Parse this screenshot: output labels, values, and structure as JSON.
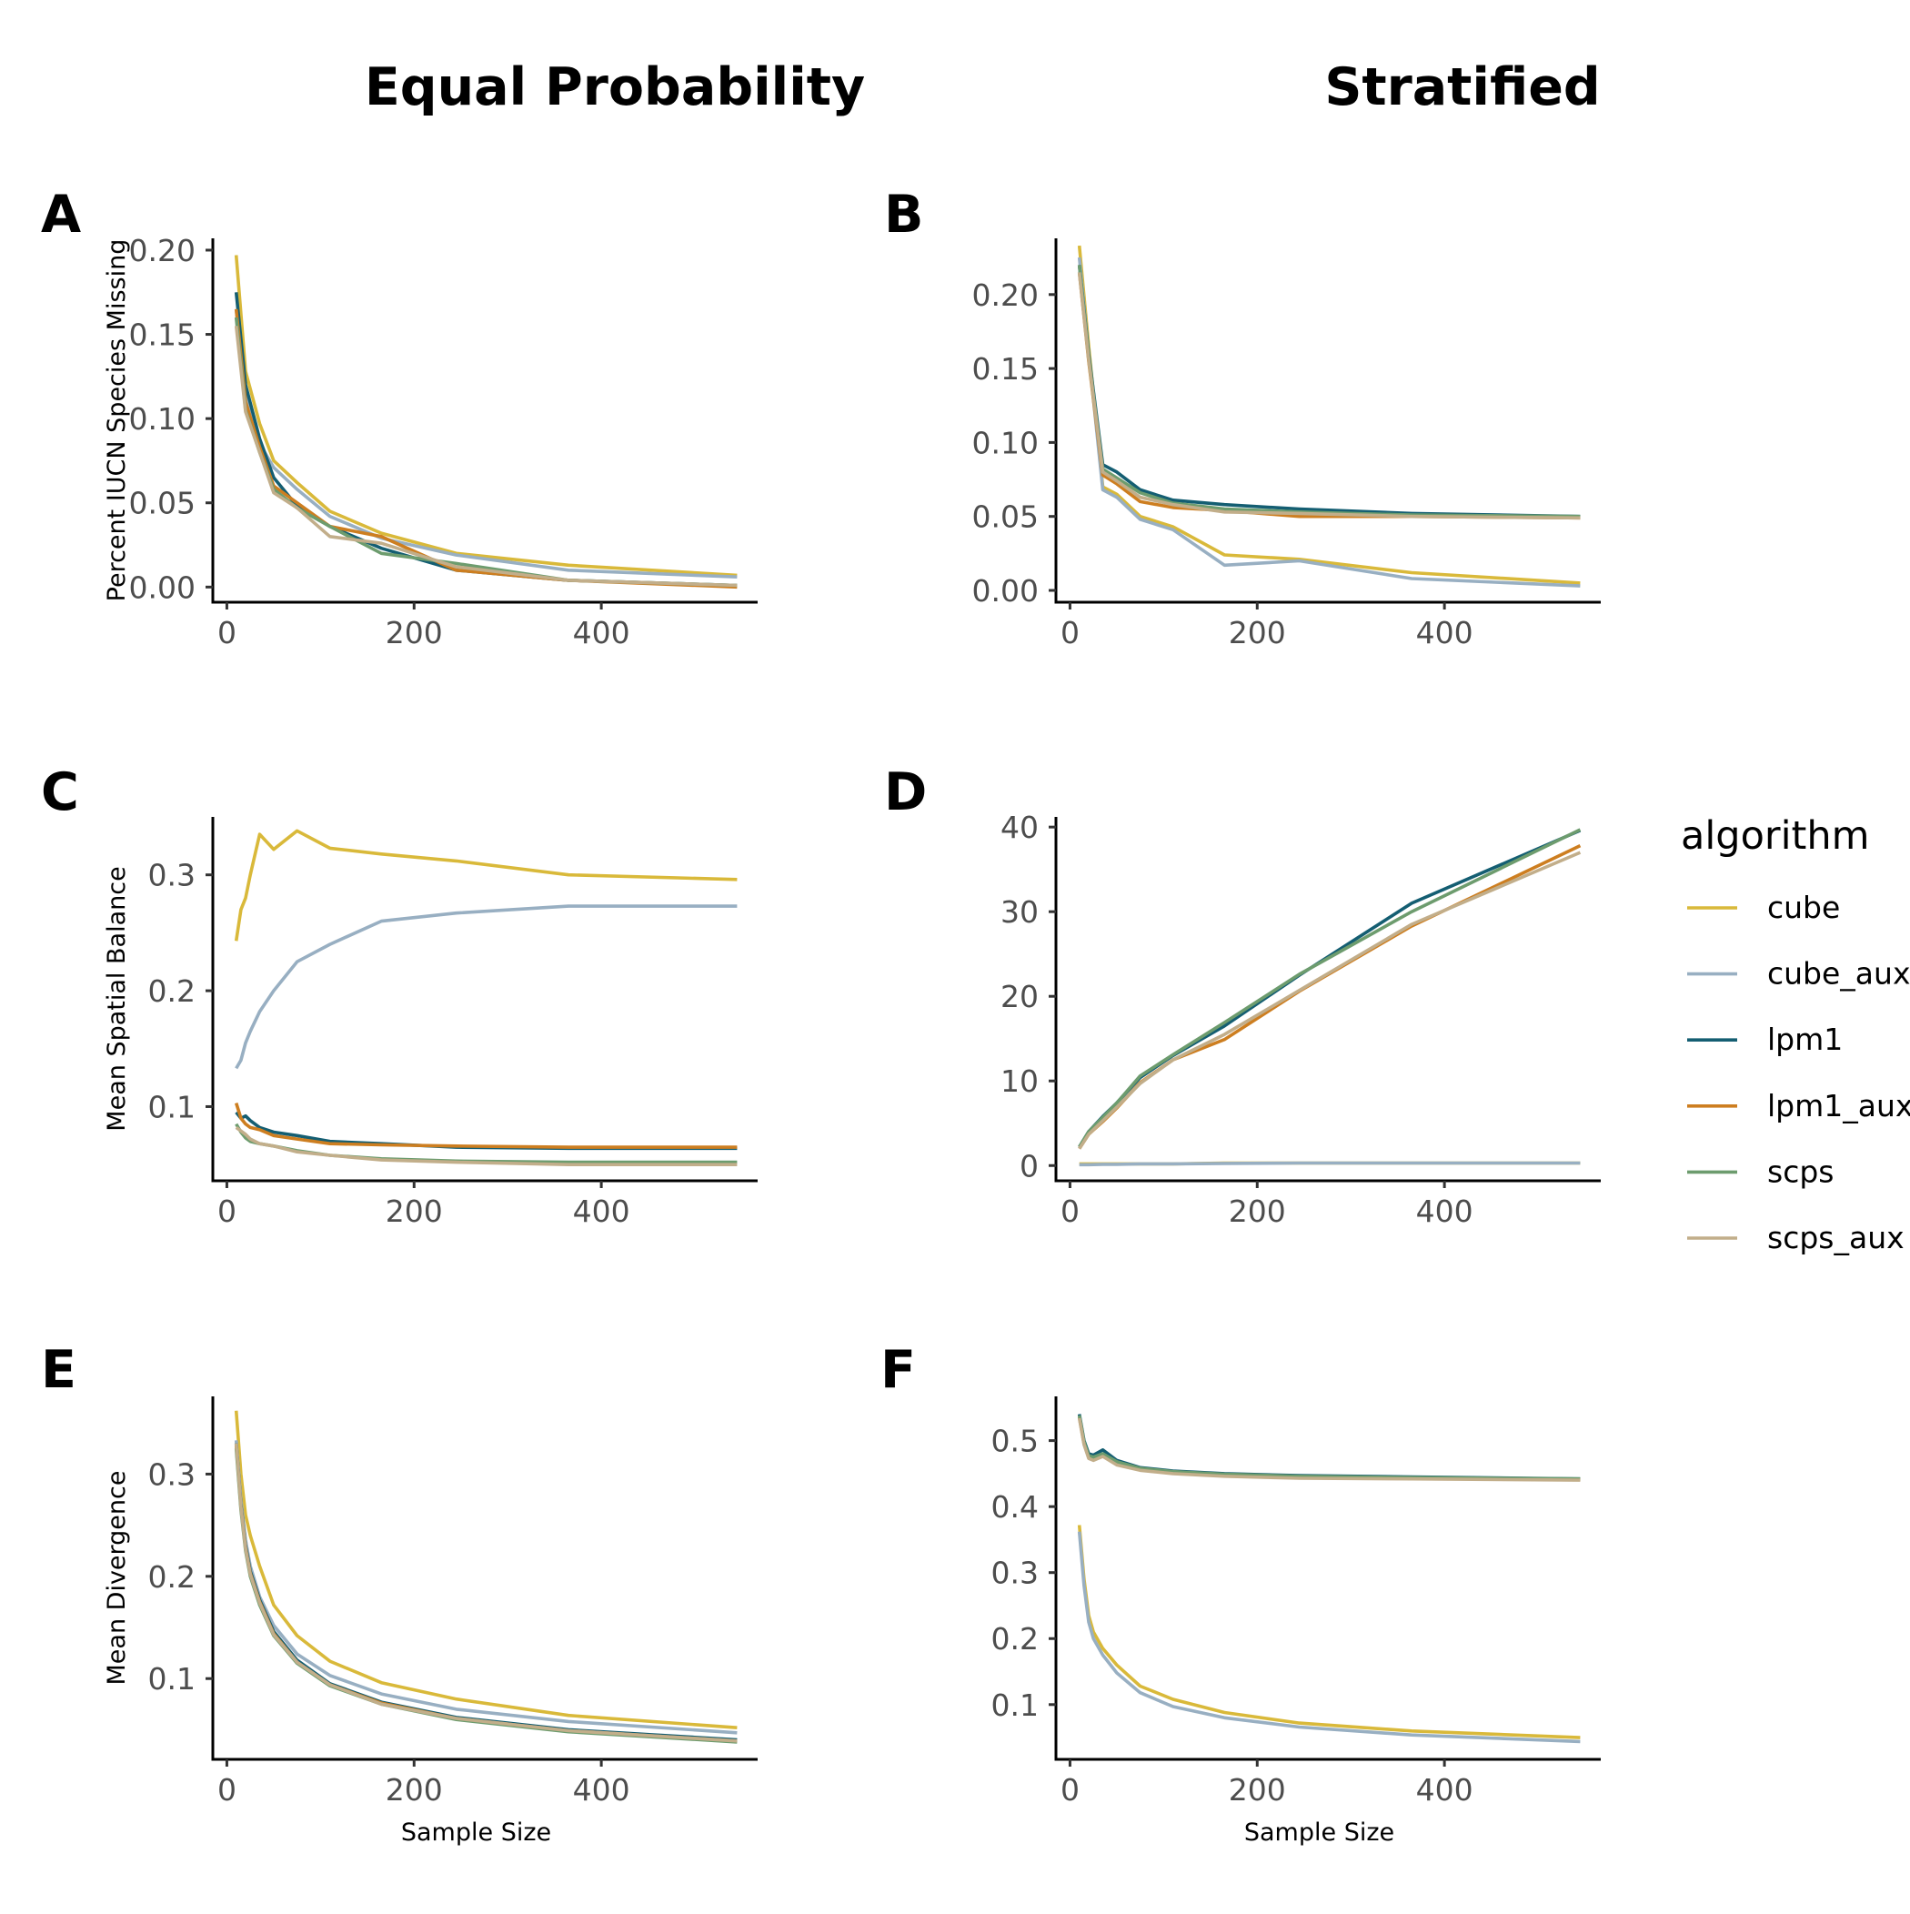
{
  "column_titles": [
    "Equal Probability",
    "Stratified"
  ],
  "legend": {
    "title": "algorithm",
    "items": [
      {
        "label": "cube",
        "color": "#D9B93A"
      },
      {
        "label": "cube_aux",
        "color": "#98AFC2"
      },
      {
        "label": "lpm1",
        "color": "#145E72"
      },
      {
        "label": "lpm1_aux",
        "color": "#CD7E20"
      },
      {
        "label": "scps",
        "color": "#6D9C6E"
      },
      {
        "label": "scps_aux",
        "color": "#C2AE8A"
      }
    ]
  },
  "chart_data": [
    {
      "panel": "A",
      "type": "line",
      "xlabel": "",
      "ylabel": "Percent IUCN Species Missing",
      "xlim": [
        -15,
        567
      ],
      "ylim": [
        -0.009,
        0.207
      ],
      "xticks": [
        0,
        200,
        400
      ],
      "yticks": [
        0.0,
        0.05,
        0.1,
        0.15,
        0.2
      ],
      "yticklabels": [
        "0.00",
        "0.05",
        "0.10",
        "0.15",
        "0.20"
      ],
      "x": [
        10,
        20,
        35,
        50,
        75,
        110,
        165,
        245,
        365,
        545
      ],
      "series": [
        {
          "name": "cube",
          "values": [
            0.197,
            0.128,
            0.097,
            0.075,
            0.062,
            0.045,
            0.032,
            0.02,
            0.013,
            0.007
          ]
        },
        {
          "name": "cube_aux",
          "values": [
            0.165,
            0.115,
            0.085,
            0.071,
            0.058,
            0.042,
            0.029,
            0.019,
            0.01,
            0.006
          ]
        },
        {
          "name": "lpm1",
          "values": [
            0.175,
            0.12,
            0.088,
            0.065,
            0.048,
            0.036,
            0.023,
            0.01,
            0.004,
            0.001
          ]
        },
        {
          "name": "lpm1_aux",
          "values": [
            0.165,
            0.11,
            0.083,
            0.06,
            0.05,
            0.036,
            0.03,
            0.01,
            0.004,
            0.0
          ]
        },
        {
          "name": "scps",
          "values": [
            0.16,
            0.105,
            0.08,
            0.058,
            0.047,
            0.036,
            0.02,
            0.014,
            0.004,
            0.001
          ]
        },
        {
          "name": "scps_aux",
          "values": [
            0.155,
            0.104,
            0.08,
            0.056,
            0.047,
            0.03,
            0.026,
            0.012,
            0.004,
            0.001
          ]
        }
      ]
    },
    {
      "panel": "B",
      "type": "line",
      "xlabel": "",
      "ylabel": "",
      "xlim": [
        -15,
        567
      ],
      "ylim": [
        -0.008,
        0.238
      ],
      "xticks": [
        0,
        200,
        400
      ],
      "yticks": [
        0.0,
        0.05,
        0.1,
        0.15,
        0.2
      ],
      "yticklabels": [
        "0.00",
        "0.05",
        "0.10",
        "0.15",
        "0.20"
      ],
      "x": [
        10,
        20,
        35,
        50,
        75,
        110,
        165,
        245,
        365,
        545
      ],
      "series": [
        {
          "name": "cube",
          "values": [
            0.233,
            0.165,
            0.07,
            0.065,
            0.05,
            0.043,
            0.024,
            0.021,
            0.012,
            0.005
          ]
        },
        {
          "name": "cube_aux",
          "values": [
            0.225,
            0.16,
            0.068,
            0.063,
            0.048,
            0.041,
            0.017,
            0.02,
            0.008,
            0.003
          ]
        },
        {
          "name": "lpm1",
          "values": [
            0.22,
            0.16,
            0.085,
            0.08,
            0.068,
            0.061,
            0.058,
            0.055,
            0.052,
            0.05
          ]
        },
        {
          "name": "lpm1_aux",
          "values": [
            0.215,
            0.155,
            0.078,
            0.072,
            0.06,
            0.056,
            0.054,
            0.05,
            0.05,
            0.049
          ]
        },
        {
          "name": "scps",
          "values": [
            0.22,
            0.158,
            0.082,
            0.076,
            0.066,
            0.059,
            0.055,
            0.053,
            0.051,
            0.05
          ]
        },
        {
          "name": "scps_aux",
          "values": [
            0.215,
            0.156,
            0.08,
            0.074,
            0.063,
            0.058,
            0.053,
            0.052,
            0.05,
            0.049
          ]
        }
      ]
    },
    {
      "panel": "C",
      "type": "line",
      "xlabel": "",
      "ylabel": "Mean Spatial Balance",
      "xlim": [
        -15,
        567
      ],
      "ylim": [
        0.036,
        0.35
      ],
      "xticks": [
        0,
        200,
        400
      ],
      "yticks": [
        0.1,
        0.2,
        0.3
      ],
      "yticklabels": [
        "0.1",
        "0.2",
        "0.3"
      ],
      "x": [
        10,
        15,
        20,
        25,
        35,
        50,
        75,
        110,
        165,
        245,
        365,
        545
      ],
      "series": [
        {
          "name": "cube",
          "values": [
            0.243,
            0.27,
            0.28,
            0.3,
            0.335,
            0.322,
            0.338,
            0.323,
            0.318,
            0.312,
            0.3,
            0.296
          ]
        },
        {
          "name": "cube_aux",
          "values": [
            0.133,
            0.14,
            0.155,
            0.165,
            0.182,
            0.2,
            0.225,
            0.24,
            0.26,
            0.267,
            0.273,
            0.273
          ]
        },
        {
          "name": "lpm1",
          "values": [
            0.095,
            0.09,
            0.092,
            0.088,
            0.082,
            0.078,
            0.075,
            0.07,
            0.068,
            0.065,
            0.064,
            0.064
          ]
        },
        {
          "name": "lpm1_aux",
          "values": [
            0.103,
            0.09,
            0.085,
            0.082,
            0.08,
            0.075,
            0.072,
            0.068,
            0.067,
            0.066,
            0.065,
            0.065
          ]
        },
        {
          "name": "scps",
          "values": [
            0.085,
            0.078,
            0.073,
            0.07,
            0.068,
            0.066,
            0.062,
            0.058,
            0.055,
            0.053,
            0.052,
            0.052
          ]
        },
        {
          "name": "scps_aux",
          "values": [
            0.082,
            0.079,
            0.076,
            0.072,
            0.068,
            0.066,
            0.061,
            0.058,
            0.054,
            0.052,
            0.05,
            0.05
          ]
        }
      ]
    },
    {
      "panel": "D",
      "type": "line",
      "xlabel": "",
      "ylabel": "",
      "xlim": [
        -15,
        567
      ],
      "ylim": [
        -1.8,
        41.2
      ],
      "xticks": [
        0,
        200,
        400
      ],
      "yticks": [
        0,
        10,
        20,
        30,
        40
      ],
      "yticklabels": [
        "0",
        "10",
        "20",
        "30",
        "40"
      ],
      "x": [
        10,
        20,
        35,
        50,
        75,
        110,
        165,
        245,
        365,
        545
      ],
      "series": [
        {
          "name": "cube",
          "values": [
            0.2,
            0.2,
            0.2,
            0.2,
            0.2,
            0.2,
            0.3,
            0.3,
            0.3,
            0.3
          ]
        },
        {
          "name": "cube_aux",
          "values": [
            0.1,
            0.1,
            0.15,
            0.15,
            0.2,
            0.2,
            0.25,
            0.3,
            0.3,
            0.3
          ]
        },
        {
          "name": "lpm1",
          "values": [
            2.2,
            4.0,
            5.8,
            7.4,
            10.4,
            13.0,
            16.5,
            22.5,
            31.0,
            39.6
          ]
        },
        {
          "name": "lpm1_aux",
          "values": [
            2.0,
            3.7,
            5.2,
            6.8,
            9.8,
            12.5,
            14.9,
            20.6,
            28.3,
            37.8
          ]
        },
        {
          "name": "scps",
          "values": [
            2.2,
            4.0,
            5.7,
            7.4,
            10.6,
            13.1,
            16.9,
            22.6,
            30.0,
            39.7
          ]
        },
        {
          "name": "scps_aux",
          "values": [
            2.0,
            3.7,
            5.3,
            6.9,
            9.7,
            12.5,
            15.5,
            20.7,
            28.5,
            37.0
          ]
        }
      ]
    },
    {
      "panel": "E",
      "type": "line",
      "xlabel": "Sample Size",
      "ylabel": "Mean Divergence",
      "xlim": [
        -15,
        567
      ],
      "ylim": [
        0.021,
        0.376
      ],
      "xticks": [
        0,
        200,
        400
      ],
      "yticks": [
        0.1,
        0.2,
        0.3
      ],
      "yticklabels": [
        "0.1",
        "0.2",
        "0.3"
      ],
      "x": [
        10,
        15,
        20,
        25,
        35,
        50,
        75,
        110,
        165,
        245,
        365,
        545
      ],
      "series": [
        {
          "name": "cube",
          "values": [
            0.362,
            0.3,
            0.26,
            0.24,
            0.21,
            0.172,
            0.142,
            0.117,
            0.096,
            0.08,
            0.064,
            0.052
          ]
        },
        {
          "name": "cube_aux",
          "values": [
            0.333,
            0.275,
            0.235,
            0.21,
            0.18,
            0.152,
            0.124,
            0.103,
            0.085,
            0.07,
            0.058,
            0.047
          ]
        },
        {
          "name": "lpm1",
          "values": [
            0.33,
            0.27,
            0.23,
            0.205,
            0.177,
            0.146,
            0.118,
            0.095,
            0.077,
            0.062,
            0.05,
            0.04
          ]
        },
        {
          "name": "lpm1_aux",
          "values": [
            0.328,
            0.268,
            0.228,
            0.203,
            0.175,
            0.144,
            0.116,
            0.094,
            0.076,
            0.061,
            0.049,
            0.039
          ]
        },
        {
          "name": "scps",
          "values": [
            0.325,
            0.265,
            0.225,
            0.2,
            0.172,
            0.142,
            0.115,
            0.093,
            0.075,
            0.06,
            0.048,
            0.038
          ]
        },
        {
          "name": "scps_aux",
          "values": [
            0.33,
            0.268,
            0.227,
            0.202,
            0.174,
            0.143,
            0.116,
            0.094,
            0.075,
            0.061,
            0.049,
            0.039
          ]
        }
      ]
    },
    {
      "panel": "F",
      "type": "line",
      "xlabel": "Sample Size",
      "ylabel": "",
      "xlim": [
        -15,
        567
      ],
      "ylim": [
        0.017,
        0.567
      ],
      "xticks": [
        0,
        200,
        400
      ],
      "yticks": [
        0.1,
        0.2,
        0.3,
        0.4,
        0.5
      ],
      "yticklabels": [
        "0.1",
        "0.2",
        "0.3",
        "0.4",
        "0.5"
      ],
      "x": [
        10,
        15,
        20,
        25,
        35,
        50,
        75,
        110,
        165,
        245,
        365,
        545
      ],
      "series": [
        {
          "name": "cube",
          "values": [
            0.372,
            0.29,
            0.235,
            0.21,
            0.185,
            0.16,
            0.128,
            0.108,
            0.088,
            0.072,
            0.06,
            0.05
          ]
        },
        {
          "name": "cube_aux",
          "values": [
            0.362,
            0.28,
            0.225,
            0.2,
            0.175,
            0.148,
            0.118,
            0.097,
            0.08,
            0.066,
            0.054,
            0.044
          ]
        },
        {
          "name": "lpm1",
          "values": [
            0.54,
            0.5,
            0.48,
            0.478,
            0.486,
            0.47,
            0.459,
            0.454,
            0.45,
            0.447,
            0.445,
            0.442
          ]
        },
        {
          "name": "lpm1_aux",
          "values": [
            0.535,
            0.495,
            0.475,
            0.472,
            0.478,
            0.465,
            0.456,
            0.451,
            0.447,
            0.444,
            0.443,
            0.441
          ]
        },
        {
          "name": "scps",
          "values": [
            0.538,
            0.498,
            0.477,
            0.475,
            0.48,
            0.468,
            0.458,
            0.453,
            0.449,
            0.446,
            0.444,
            0.442
          ]
        },
        {
          "name": "scps_aux",
          "values": [
            0.534,
            0.494,
            0.473,
            0.47,
            0.476,
            0.463,
            0.455,
            0.45,
            0.446,
            0.443,
            0.442,
            0.44
          ]
        }
      ]
    }
  ]
}
